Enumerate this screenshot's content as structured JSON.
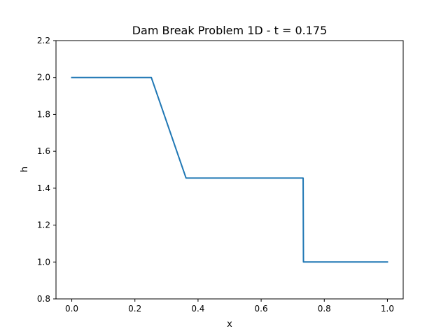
{
  "chart_data": {
    "type": "line",
    "title": "Dam Break Problem 1D - t = 0.175",
    "xlabel": "x",
    "ylabel": "h",
    "xlim": [
      -0.05,
      1.05
    ],
    "ylim": [
      0.8,
      2.2
    ],
    "grid": false,
    "xticks": [
      0.0,
      0.2,
      0.4,
      0.6,
      0.8,
      1.0
    ],
    "xtick_labels": [
      "0.0",
      "0.2",
      "0.4",
      "0.6",
      "0.8",
      "1.0"
    ],
    "yticks": [
      0.8,
      1.0,
      1.2,
      1.4,
      1.6,
      1.8,
      2.0,
      2.2
    ],
    "ytick_labels": [
      "0.8",
      "1.0",
      "1.2",
      "1.4",
      "1.6",
      "1.8",
      "2.0",
      "2.2"
    ],
    "series": [
      {
        "color": "#1f77b4",
        "x": [
          0.0,
          0.252,
          0.362,
          0.733,
          0.734,
          1.0
        ],
        "y": [
          2.0,
          2.0,
          1.455,
          1.455,
          1.0,
          1.0
        ]
      }
    ]
  }
}
